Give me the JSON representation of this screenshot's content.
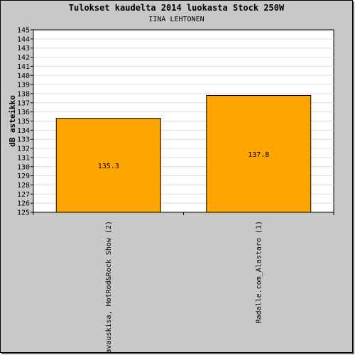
{
  "chart_data": {
    "type": "bar",
    "title": "Tulokset kaudelta 2014 luokasta Stock 250W",
    "subtitle": "IINA LEHTONEN",
    "ylabel": "dB asteikko",
    "xlabel": "",
    "ylim": [
      125,
      145
    ],
    "ytick_step": 1,
    "grid": true,
    "categories": [
      "avauskisa, HotRod&Rock Show (2)",
      "Radalle.com_Alastaro (1)"
    ],
    "values": [
      135.3,
      137.8
    ],
    "value_labels": [
      "135.3",
      "137.8"
    ],
    "bar_color": "#ffa500",
    "background_color": "#c8c8c8",
    "plot_color": "#ffffff",
    "grid_color": "#dcdcdc"
  }
}
